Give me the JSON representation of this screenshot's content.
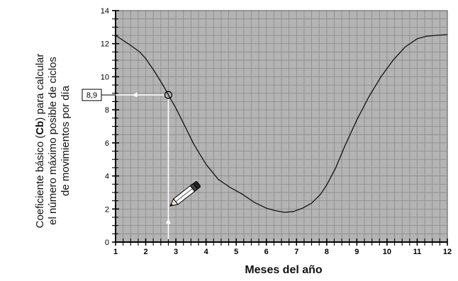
{
  "chart_data": {
    "type": "line",
    "ylabel_parts": [
      "Coeficiente básico (",
      "Cb",
      ") para calcular el número máximo posible de ciclos de movimientos por día"
    ],
    "xlabel": "Meses del año",
    "xlim": [
      1,
      12
    ],
    "ylim": [
      0,
      14
    ],
    "x_ticks": [
      1,
      2,
      3,
      4,
      5,
      6,
      7,
      8,
      9,
      10,
      11,
      12
    ],
    "y_ticks": [
      0,
      2,
      4,
      6,
      8,
      10,
      12,
      14
    ],
    "grid": true,
    "background_color": "#b4b4b4",
    "grid_color": "#8a8a8a",
    "line_color": "#111111",
    "marker_color": "#ffffff",
    "series": [
      {
        "x": [
          1,
          1.5,
          1.8,
          2.0,
          2.3,
          2.6,
          2.75,
          3.0,
          3.3,
          3.6,
          4.0,
          4.4,
          4.8,
          5.2,
          5.6,
          6.0,
          6.3,
          6.6,
          6.9,
          7.2,
          7.5,
          7.8,
          8.0,
          8.3,
          8.6,
          9.0,
          9.4,
          9.8,
          10.2,
          10.6,
          11.0,
          11.3,
          11.6,
          12.0
        ],
        "y": [
          12.5,
          11.9,
          11.5,
          11.1,
          10.3,
          9.4,
          8.9,
          8.1,
          7.0,
          5.9,
          4.7,
          3.8,
          3.3,
          2.9,
          2.4,
          2.05,
          1.9,
          1.8,
          1.85,
          2.05,
          2.35,
          2.9,
          3.45,
          4.5,
          5.8,
          7.4,
          8.8,
          10.0,
          11.0,
          11.8,
          12.3,
          12.45,
          12.5,
          12.55
        ]
      }
    ],
    "annotation": {
      "x": 2.75,
      "y": 8.9,
      "label": "8,9"
    }
  },
  "icons": {
    "pencil": "pencil-icon"
  }
}
